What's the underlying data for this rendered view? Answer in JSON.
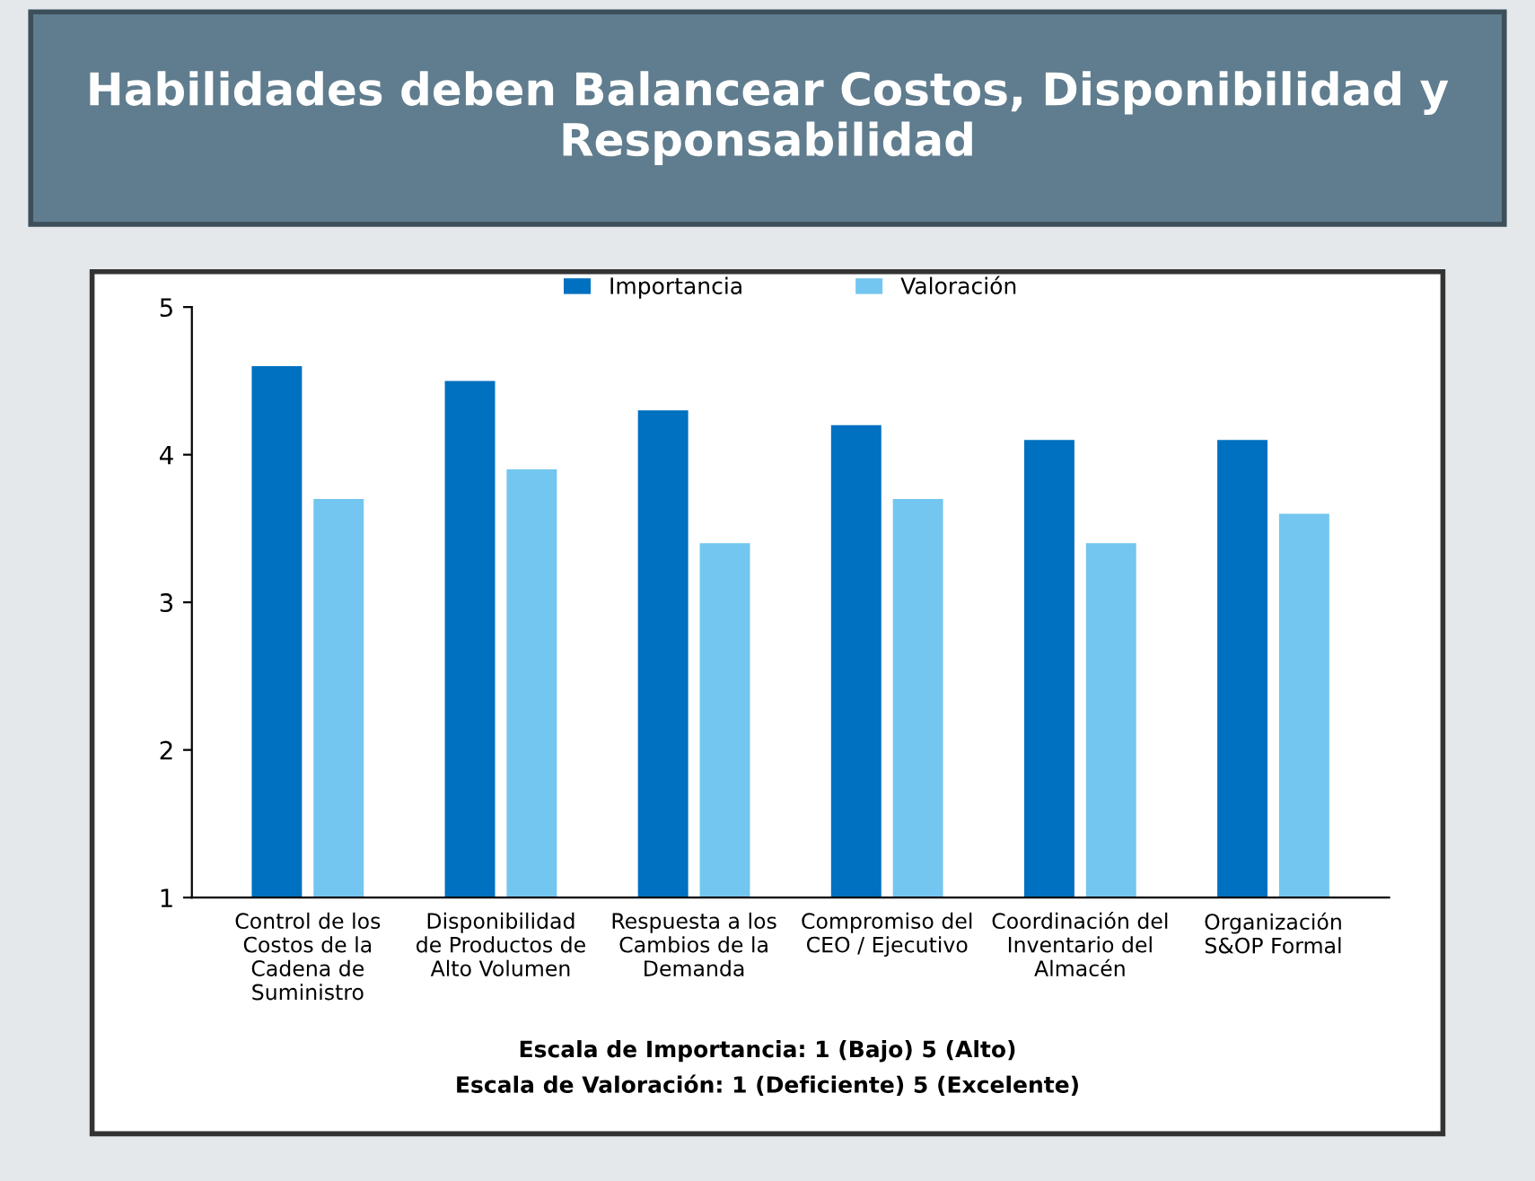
{
  "chart_data": {
    "type": "bar",
    "title": "Habilidades deben Balancear Costos, Disponibilidad y Responsabilidad",
    "categories": [
      "Control de los Costos de la Cadena de Suministro",
      "Disponibilidad de Productos de Alto Volumen",
      "Respuesta a los Cambios de la Demanda",
      "Compromiso del CEO / Ejecutivo",
      "Coordinación del Inventario del Almacén",
      "Organización S&OP Formal"
    ],
    "series": [
      {
        "name": "Importancia",
        "color": "#0070c0",
        "values": [
          4.6,
          4.5,
          4.3,
          4.2,
          4.1,
          4.1
        ]
      },
      {
        "name": "Valoración",
        "color": "#73c6ef",
        "values": [
          3.7,
          3.9,
          3.4,
          3.7,
          3.4,
          3.6
        ]
      }
    ],
    "ylim": [
      1,
      5
    ],
    "yticks": [
      1,
      2,
      3,
      4,
      5
    ],
    "grid": false,
    "legend": "top",
    "annotations": [
      "Escala de Importancia: 1 (Bajo) 5 (Alto)",
      "Escala de Valoración: 1 (Deficiente) 5 (Excelente)"
    ]
  }
}
